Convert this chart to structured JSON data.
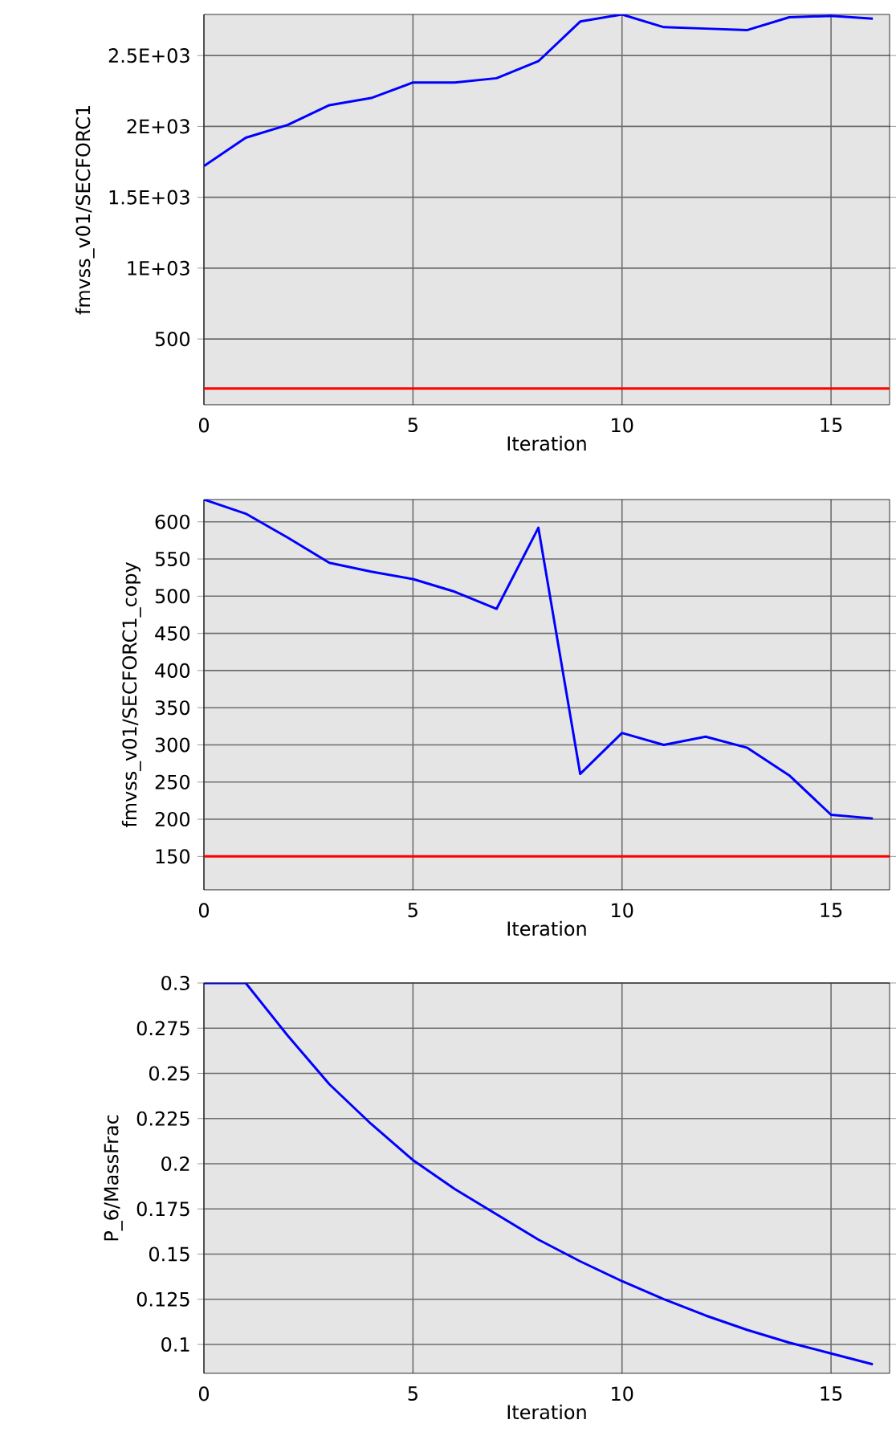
{
  "chart_data": [
    {
      "type": "line",
      "xlabel": "Iteration",
      "ylabel": "fmvss_v01/SECFORC1",
      "x": [
        0,
        1,
        2,
        3,
        4,
        5,
        6,
        7,
        8,
        9,
        10,
        11,
        12,
        13,
        14,
        15,
        16
      ],
      "series": [
        {
          "color": "#0000ff",
          "values": [
            1720,
            1920,
            2010,
            2150,
            2200,
            2310,
            2310,
            2340,
            2460,
            2740,
            2790,
            2700,
            2690,
            2680,
            2770,
            2780,
            2760
          ]
        }
      ],
      "xlim": [
        0,
        16.4
      ],
      "xticks": [
        0,
        5,
        10,
        15
      ],
      "ylim": [
        36,
        2790
      ],
      "yticks": [
        500,
        {
          "value": 1000,
          "label": "1E+03"
        },
        {
          "value": 1500,
          "label": "1.5E+03"
        },
        {
          "value": 2000,
          "label": "2E+03"
        },
        {
          "value": 2500,
          "label": "2.5E+03"
        }
      ],
      "grid": true,
      "ref_lines": [
        {
          "axis": "y",
          "value": 150,
          "color": "#ff0000"
        }
      ]
    },
    {
      "type": "line",
      "xlabel": "Iteration",
      "ylabel": "fmvss_v01/SECFORC1_copy",
      "x": [
        0,
        1,
        2,
        3,
        4,
        5,
        6,
        7,
        8,
        9,
        10,
        11,
        12,
        13,
        14,
        15,
        16
      ],
      "series": [
        {
          "color": "#0000ff",
          "values": [
            630,
            611,
            579,
            545,
            533,
            523,
            506,
            483,
            592,
            261,
            316,
            300,
            311,
            296,
            259,
            206,
            201
          ]
        }
      ],
      "xlim": [
        0,
        16.4
      ],
      "xticks": [
        0,
        5,
        10,
        15
      ],
      "ylim": [
        105,
        630
      ],
      "yticks": [
        150,
        200,
        250,
        300,
        350,
        400,
        450,
        500,
        550,
        600
      ],
      "grid": true,
      "ref_lines": [
        {
          "axis": "y",
          "value": 150,
          "color": "#ff0000"
        }
      ]
    },
    {
      "type": "line",
      "xlabel": "Iteration",
      "ylabel": "P_6/MassFrac",
      "x": [
        0,
        1,
        2,
        3,
        4,
        5,
        6,
        7,
        8,
        9,
        10,
        11,
        12,
        13,
        14,
        15,
        16
      ],
      "series": [
        {
          "color": "#0000ff",
          "values": [
            0.3,
            0.3,
            0.271,
            0.244,
            0.222,
            0.202,
            0.186,
            0.172,
            0.158,
            0.146,
            0.135,
            0.125,
            0.116,
            0.108,
            0.101,
            0.095,
            0.089
          ]
        }
      ],
      "xlim": [
        0,
        16.4
      ],
      "xticks": [
        0,
        5,
        10,
        15
      ],
      "ylim": [
        0.084,
        0.3
      ],
      "yticks": [
        0.1,
        0.125,
        0.15,
        0.175,
        0.2,
        0.225,
        0.25,
        0.275,
        0.3
      ],
      "grid": true
    }
  ]
}
